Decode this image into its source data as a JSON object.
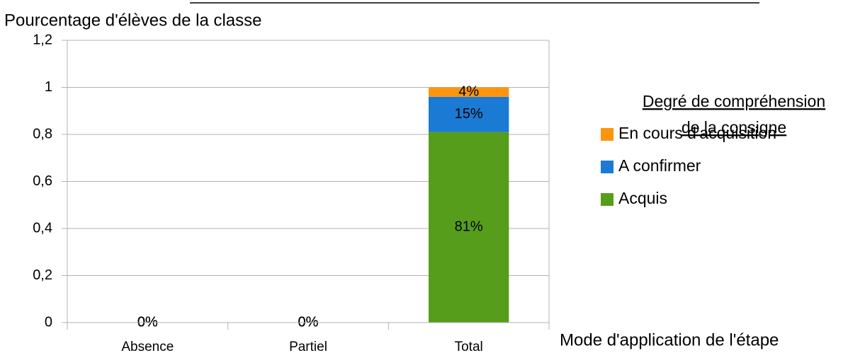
{
  "chart_data": {
    "type": "stacked_bar",
    "y_label": "Pourcentage d'élèves de la classe",
    "x_label": "Mode d'application de l'étape",
    "categories": [
      "Absence",
      "Partiel",
      "Total"
    ],
    "series": [
      {
        "name": "Acquis",
        "color": "#579d1c",
        "values": [
          0,
          0,
          0.81
        ],
        "value_labels": [
          "0%",
          "0%",
          "81%"
        ]
      },
      {
        "name": "A confirmer",
        "color": "#1a7ad4",
        "values": [
          0,
          0,
          0.15
        ],
        "value_labels": [
          "0%",
          "0%",
          "15%"
        ]
      },
      {
        "name": "En cours d'acquisition",
        "color": "#ff950e",
        "values": [
          0,
          0,
          0.04
        ],
        "value_labels": [
          "0%",
          "0%",
          "4%"
        ]
      }
    ],
    "legend_title": [
      "Degré de compréhension",
      "de la consigne"
    ],
    "ylim": [
      0,
      1.2
    ],
    "yticks": [
      0,
      {
        "value": 0.2,
        "label": "0,2"
      },
      {
        "value": 0.4,
        "label": "0,4"
      },
      {
        "value": 0.6,
        "label": "0,6"
      },
      {
        "value": 0.8,
        "label": "0,8"
      },
      1,
      {
        "value": 1.2,
        "label": "1,2"
      }
    ],
    "grid": true
  }
}
